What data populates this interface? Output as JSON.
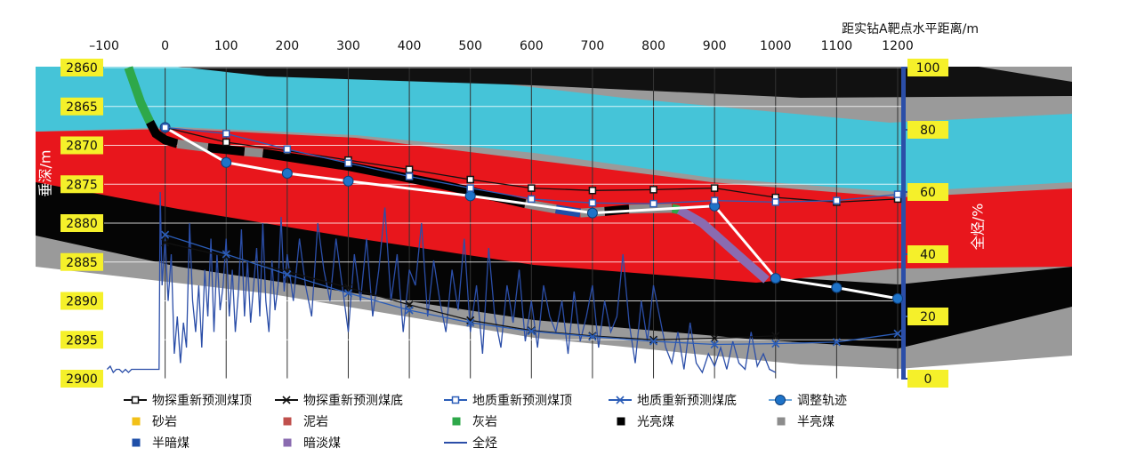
{
  "chart_data": {
    "type": "line",
    "xlabel": "距实钻A靶点水平距离/m",
    "ylabel": "垂深/m",
    "y2label": "全烃/%",
    "xlim": [
      -100,
      1200
    ],
    "xticks": [
      {
        "value": -100,
        "label": "–100"
      },
      0,
      100,
      200,
      300,
      400,
      500,
      600,
      700,
      800,
      900,
      1000,
      1100,
      1200
    ],
    "ylim": [
      2860,
      2900
    ],
    "y_inverted": true,
    "yticks": [
      2860,
      2865,
      2870,
      2875,
      2880,
      2885,
      2890,
      2895,
      2900
    ],
    "y2lim": [
      0,
      100
    ],
    "y2ticks": [
      0,
      20,
      40,
      60,
      80,
      100
    ],
    "grid": true,
    "series": [
      {
        "name": "物探重新预测煤顶",
        "style": "square",
        "color": "#111111",
        "x": [
          0,
          100,
          200,
          300,
          400,
          500,
          600,
          700,
          800,
          900,
          1000,
          1100,
          1200
        ],
        "values": [
          2867.7,
          2869.6,
          2870.7,
          2871.9,
          2873.1,
          2874.4,
          2875.5,
          2875.8,
          2875.7,
          2875.5,
          2876.7,
          2877.3,
          2876.9
        ]
      },
      {
        "name": "物探重新预测煤底",
        "style": "cross",
        "color": "#111111",
        "x": [
          0,
          100,
          200,
          300,
          400,
          500,
          600,
          700,
          800,
          900,
          1000
        ],
        "values": [
          2882.5,
          2884.3,
          2886.2,
          2888.3,
          2890.5,
          2892.5,
          2893.8,
          2894.5,
          2895,
          2894.8,
          2894.5
        ]
      },
      {
        "name": "地质重新预测煤顶",
        "style": "square",
        "color": "#2b5db8",
        "x": [
          0,
          100,
          200,
          300,
          400,
          500,
          600,
          700,
          800,
          900,
          1000,
          1100,
          1200
        ],
        "values": [
          2867.7,
          2868.5,
          2870.5,
          2872.3,
          2874,
          2875.5,
          2876.9,
          2877.4,
          2877.5,
          2877.1,
          2877.3,
          2877.1,
          2876.3
        ]
      },
      {
        "name": "地质重新预测煤底",
        "style": "cross",
        "color": "#2b5db8",
        "x": [
          0,
          100,
          200,
          300,
          400,
          500,
          600,
          700,
          800,
          900,
          1000,
          1100,
          1200
        ],
        "values": [
          2881.5,
          2884,
          2886.6,
          2889,
          2891.2,
          2892.8,
          2893.9,
          2894.6,
          2895.2,
          2895.6,
          2895.5,
          2895.3,
          2894.2
        ]
      },
      {
        "name": "调整轨迹",
        "style": "circle",
        "color": "#1e73c8",
        "line_color": "#ffffff",
        "x": [
          0,
          100,
          200,
          300,
          500,
          700,
          900,
          1000,
          1100,
          1200
        ],
        "values": [
          2867.7,
          2872.2,
          2873.6,
          2874.6,
          2876.5,
          2878.7,
          2877.8,
          2887.1,
          2888.3,
          2889.7
        ]
      },
      {
        "name": "砂岩",
        "style": "lithology",
        "color": "#f2c018",
        "x": [],
        "values": []
      },
      {
        "name": "泥岩",
        "style": "lithology",
        "color": "#c0504d",
        "x": [],
        "values": []
      },
      {
        "name": "灰岩",
        "style": "lithology",
        "color": "#2ea84a",
        "x": [
          -60,
          -40,
          -25,
          null,
          830,
          842
        ],
        "values": [
          2860,
          2864.5,
          2867,
          null,
          2878.1,
          2878.3
        ]
      },
      {
        "name": "光亮煤",
        "style": "lithology",
        "color": "#000000",
        "x": [
          -25,
          -15,
          0,
          20,
          null,
          70,
          130,
          null,
          160,
          300,
          450,
          590,
          null,
          720,
          760
        ],
        "values": [
          2867,
          2868.5,
          2869.3,
          2869.8,
          null,
          2870.3,
          2870.8,
          null,
          2871,
          2872.7,
          2875,
          2877.5,
          null,
          2878.5,
          2878.2
        ]
      },
      {
        "name": "半亮煤",
        "style": "lithology",
        "color": "#8c8c8c",
        "x": [
          20,
          70,
          null,
          130,
          160,
          null,
          590,
          640,
          null,
          680,
          720,
          null,
          760,
          830
        ],
        "values": [
          2869.8,
          2870.3,
          null,
          2870.8,
          2871,
          null,
          2877.5,
          2878.2,
          null,
          2878.7,
          2878.5,
          null,
          2878.2,
          2878.1
        ]
      },
      {
        "name": "半暗煤",
        "style": "lithology",
        "color": "#1f4fa8",
        "x": [
          640,
          680
        ],
        "values": [
          2878.2,
          2878.7
        ]
      },
      {
        "name": "暗淡煤",
        "style": "lithology",
        "color": "#8a6bb0",
        "x": [
          842,
          880,
          930,
          985
        ],
        "values": [
          2878.3,
          2880,
          2883.5,
          2887.3
        ]
      },
      {
        "name": "全烃",
        "style": "line",
        "axis": "y2",
        "color": "#2b4ea8",
        "x": [
          -95,
          -90,
          -85,
          -80,
          -75,
          -70,
          -65,
          -60,
          -55,
          -50,
          -45,
          -40,
          -35,
          -30,
          -25,
          -20,
          -15,
          -10,
          -8,
          -5,
          0,
          5,
          10,
          15,
          20,
          25,
          30,
          35,
          40,
          45,
          50,
          55,
          60,
          65,
          70,
          75,
          80,
          85,
          90,
          95,
          100,
          105,
          110,
          115,
          120,
          125,
          130,
          135,
          140,
          145,
          150,
          155,
          160,
          165,
          170,
          175,
          180,
          185,
          190,
          195,
          200,
          210,
          220,
          230,
          240,
          250,
          260,
          270,
          280,
          290,
          300,
          310,
          320,
          330,
          340,
          350,
          360,
          370,
          380,
          390,
          400,
          410,
          420,
          430,
          440,
          450,
          460,
          470,
          480,
          490,
          500,
          510,
          520,
          530,
          540,
          550,
          560,
          570,
          580,
          590,
          600,
          610,
          620,
          630,
          640,
          650,
          660,
          670,
          680,
          690,
          700,
          710,
          720,
          730,
          740,
          750,
          760,
          770,
          780,
          790,
          800,
          810,
          820,
          830,
          840,
          850,
          860,
          870,
          880,
          890,
          900,
          910,
          920,
          930,
          940,
          950,
          960,
          970,
          980,
          990,
          1000
        ],
        "values": [
          3,
          4,
          2,
          3,
          3,
          2,
          3,
          2,
          3,
          3,
          3,
          3,
          3,
          3,
          3,
          3,
          3,
          3,
          60,
          30,
          45,
          25,
          40,
          8,
          20,
          5,
          18,
          10,
          50,
          25,
          15,
          30,
          10,
          35,
          20,
          45,
          15,
          40,
          22,
          30,
          45,
          20,
          35,
          15,
          28,
          48,
          20,
          38,
          18,
          30,
          42,
          20,
          50,
          25,
          15,
          38,
          22,
          30,
          52,
          28,
          40,
          25,
          45,
          30,
          20,
          50,
          35,
          25,
          45,
          30,
          15,
          40,
          25,
          45,
          20,
          35,
          55,
          25,
          40,
          15,
          35,
          30,
          50,
          20,
          38,
          25,
          15,
          35,
          22,
          45,
          15,
          30,
          8,
          42,
          20,
          10,
          30,
          18,
          35,
          12,
          25,
          10,
          30,
          20,
          15,
          25,
          8,
          28,
          12,
          20,
          30,
          10,
          25,
          15,
          20,
          40,
          18,
          5,
          25,
          12,
          30,
          20,
          10,
          5,
          15,
          3,
          18,
          5,
          2,
          8,
          4,
          10,
          3,
          12,
          5,
          3,
          15,
          4,
          8,
          3,
          2
        ]
      }
    ]
  }
}
